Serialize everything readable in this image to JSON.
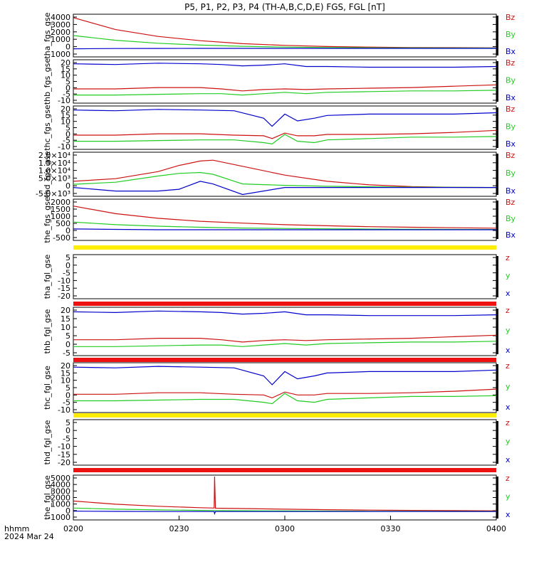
{
  "title": "P5, P1, P2, P3, P4 (TH-A,B,C,D,E) FGS, FGL [nT]",
  "colors": {
    "x": "#0000cc",
    "y": "#22cc22",
    "z": "#cc1111",
    "bar_yellow": "#ffee00",
    "bar_red": "#ee1111"
  },
  "xaxis": {
    "ticks": [
      "0200",
      "0230",
      "0300",
      "0330",
      "0400"
    ],
    "label_line1": "hhmm",
    "label_line2": "2024 Mar 24"
  },
  "chart_data": [
    {
      "type": "line",
      "ylabel": "tha_fgs_gse",
      "yticks": [
        "4000",
        "3000",
        "2000",
        "1000",
        "0",
        "-1000"
      ],
      "ylim": [
        -1000,
        4000
      ],
      "legend": [
        "Bz",
        "By",
        "Bx"
      ],
      "x": [
        0,
        0.1,
        0.2,
        0.3,
        0.4,
        0.5,
        0.6,
        0.7,
        0.8,
        0.9,
        1.0
      ],
      "series": [
        {
          "name": "Bz",
          "values": [
            3600,
            2200,
            1400,
            900,
            550,
            350,
            220,
            150,
            100,
            80,
            60
          ]
        },
        {
          "name": "By",
          "values": [
            1500,
            950,
            600,
            380,
            240,
            150,
            100,
            70,
            50,
            40,
            30
          ]
        },
        {
          "name": "Bx",
          "values": [
            -50,
            -20,
            -10,
            0,
            0,
            0,
            0,
            0,
            0,
            0,
            0
          ]
        }
      ]
    },
    {
      "type": "line",
      "ylabel": "thb_fgs_gse",
      "yticks": [
        "20",
        "15",
        "10",
        "5",
        "0",
        "-5",
        "-10"
      ],
      "ylim": [
        -10,
        22
      ],
      "legend": [
        "Bz",
        "By",
        "Bx"
      ],
      "x": [
        0,
        0.1,
        0.2,
        0.3,
        0.35,
        0.4,
        0.45,
        0.5,
        0.55,
        0.6,
        0.7,
        0.8,
        0.9,
        1.0
      ],
      "series": [
        {
          "name": "Bz",
          "values": [
            0.5,
            0.5,
            1.5,
            1.5,
            0.5,
            -1,
            0,
            0.5,
            0,
            0.5,
            1,
            1.5,
            2.5,
            3.5
          ]
        },
        {
          "name": "By",
          "values": [
            -4,
            -4,
            -3.5,
            -3,
            -3,
            -4,
            -3,
            -2,
            -3,
            -2,
            -1.5,
            -1,
            -1,
            -0.5
          ]
        },
        {
          "name": "Bx",
          "values": [
            19,
            18.5,
            19.5,
            19,
            18.5,
            17.5,
            18,
            19,
            17,
            17,
            16.5,
            16.5,
            16.5,
            17
          ]
        }
      ]
    },
    {
      "type": "line",
      "ylabel": "thc_fgs_gse",
      "yticks": [
        "20",
        "15",
        "10",
        "5",
        "0",
        "-5",
        "-10"
      ],
      "ylim": [
        -10,
        22
      ],
      "legend": [
        "Bz",
        "By",
        "Bx"
      ],
      "x": [
        0,
        0.1,
        0.2,
        0.3,
        0.38,
        0.45,
        0.47,
        0.5,
        0.53,
        0.57,
        0.6,
        0.7,
        0.8,
        0.9,
        1.0
      ],
      "series": [
        {
          "name": "Bz",
          "values": [
            0.5,
            0.5,
            1.5,
            1.5,
            0.5,
            0,
            -2,
            2,
            0,
            0,
            1,
            1,
            1.5,
            2.5,
            4
          ]
        },
        {
          "name": "By",
          "values": [
            -4,
            -4,
            -3.5,
            -3,
            -3,
            -5,
            -6,
            1,
            -4,
            -5,
            -3,
            -2,
            -1,
            -1,
            -0.5
          ]
        },
        {
          "name": "Bx",
          "values": [
            19,
            18.5,
            19.5,
            19,
            18.5,
            13,
            7,
            16,
            11,
            13,
            15,
            16,
            16,
            16,
            17
          ]
        }
      ]
    },
    {
      "type": "line",
      "ylabel": "thd_fgs_gse",
      "yticks": [
        "2.0×10⁴",
        "1.5×10⁴",
        "1.0×10⁴",
        "5.0×10³",
        "0",
        "-5.0×10³"
      ],
      "ylim": [
        -5000,
        20000
      ],
      "legend": [
        "Bz",
        "By",
        "Bx"
      ],
      "x": [
        0,
        0.1,
        0.2,
        0.25,
        0.3,
        0.33,
        0.4,
        0.5,
        0.6,
        0.7,
        0.8,
        0.9,
        1.0
      ],
      "series": [
        {
          "name": "Bz",
          "values": [
            3500,
            5000,
            9000,
            12500,
            15000,
            15500,
            12000,
            7000,
            3500,
            1500,
            500,
            100,
            0
          ]
        },
        {
          "name": "By",
          "values": [
            1800,
            3000,
            6500,
            8000,
            8500,
            7500,
            2000,
            1200,
            700,
            400,
            200,
            80,
            0
          ]
        },
        {
          "name": "Bx",
          "values": [
            0,
            -2000,
            -2000,
            -1000,
            3500,
            2000,
            -4000,
            0,
            0,
            0,
            0,
            0,
            0
          ]
        }
      ]
    },
    {
      "type": "line",
      "ylabel": "the_fgs_gse",
      "yticks": [
        "2000",
        "1500",
        "1000",
        "500",
        "0",
        "-500"
      ],
      "ylim": [
        -700,
        2000
      ],
      "legend": [
        "Bz",
        "By",
        "Bx"
      ],
      "x": [
        0,
        0.1,
        0.2,
        0.3,
        0.4,
        0.5,
        0.6,
        0.7,
        0.8,
        0.9,
        1.0
      ],
      "series": [
        {
          "name": "Bz",
          "values": [
            1550,
            1050,
            750,
            550,
            430,
            330,
            260,
            200,
            160,
            130,
            100
          ]
        },
        {
          "name": "By",
          "values": [
            500,
            330,
            230,
            160,
            110,
            80,
            60,
            40,
            30,
            20,
            15
          ]
        },
        {
          "name": "Bx",
          "values": [
            50,
            20,
            0,
            0,
            0,
            0,
            0,
            0,
            0,
            0,
            0
          ]
        }
      ]
    },
    {
      "type": "line",
      "ylabel": "tha_fgl_gse",
      "yticks": [
        "5",
        "0",
        "-5",
        "-10",
        "-15",
        "-20"
      ],
      "ylim": [
        -22,
        7
      ],
      "legend": [
        "z",
        "y",
        "x"
      ],
      "x": [],
      "series": []
    },
    {
      "type": "line",
      "ylabel": "thb_fgl_gse",
      "yticks": [
        "20",
        "15",
        "10",
        "5",
        "0",
        "-5"
      ],
      "ylim": [
        -10,
        22
      ],
      "legend": [
        "z",
        "y",
        "x"
      ],
      "x": [
        0,
        0.1,
        0.2,
        0.3,
        0.35,
        0.4,
        0.45,
        0.5,
        0.55,
        0.6,
        0.7,
        0.8,
        0.9,
        1.0
      ],
      "series": [
        {
          "name": "z",
          "values": [
            0.5,
            0.5,
            1.5,
            1.5,
            0.5,
            -1,
            0,
            0.5,
            0,
            0.5,
            1,
            1.5,
            2.5,
            3.5
          ]
        },
        {
          "name": "y",
          "values": [
            -4,
            -4,
            -3.5,
            -3,
            -3,
            -4,
            -3,
            -2,
            -3,
            -2,
            -1.5,
            -1,
            -1,
            -0.5
          ]
        },
        {
          "name": "x",
          "values": [
            19,
            18.5,
            19.5,
            19,
            18.5,
            17.5,
            18,
            19,
            17,
            17,
            16.5,
            16.5,
            16.5,
            17
          ]
        }
      ]
    },
    {
      "type": "line",
      "ylabel": "thc_fgl_gse",
      "yticks": [
        "20",
        "15",
        "10",
        "5",
        "0",
        "-5",
        "-10"
      ],
      "ylim": [
        -12,
        22
      ],
      "legend": [
        "z",
        "y",
        "x"
      ],
      "x": [
        0,
        0.1,
        0.2,
        0.3,
        0.38,
        0.45,
        0.47,
        0.5,
        0.53,
        0.57,
        0.6,
        0.7,
        0.8,
        0.9,
        1.0
      ],
      "series": [
        {
          "name": "z",
          "values": [
            0.5,
            0.5,
            1.5,
            1.5,
            0.5,
            0,
            -2,
            2,
            0,
            0,
            1,
            1,
            1.5,
            2.5,
            4
          ]
        },
        {
          "name": "y",
          "values": [
            -4,
            -4,
            -3.5,
            -3,
            -3,
            -5,
            -6,
            1,
            -4,
            -5,
            -3,
            -2,
            -1,
            -1,
            -0.5
          ]
        },
        {
          "name": "x",
          "values": [
            19,
            18.5,
            19.5,
            19,
            18.5,
            13,
            7,
            16,
            11,
            13,
            15,
            16,
            16,
            16,
            17
          ]
        }
      ]
    },
    {
      "type": "line",
      "ylabel": "thd_fgl_gse",
      "yticks": [
        "5",
        "0",
        "-5",
        "-10",
        "-15",
        "-20"
      ],
      "ylim": [
        -22,
        7
      ],
      "legend": [
        "z",
        "y",
        "x"
      ],
      "x": [],
      "series": []
    },
    {
      "type": "line",
      "ylabel": "the_fgl_gse",
      "yticks": [
        "5000",
        "4000",
        "3000",
        "2000",
        "1000",
        "0",
        "-1000"
      ],
      "ylim": [
        -1200,
        5200
      ],
      "legend": [
        "z",
        "y",
        "x"
      ],
      "x": [
        0,
        0.1,
        0.2,
        0.3,
        0.333,
        0.334,
        0.336,
        0.4,
        0.5,
        0.6,
        0.7,
        0.8,
        0.9,
        1.0
      ],
      "series": [
        {
          "name": "z",
          "values": [
            1500,
            1050,
            750,
            550,
            500,
            5000,
            480,
            430,
            330,
            260,
            200,
            160,
            130,
            100
          ]
        },
        {
          "name": "y",
          "values": [
            500,
            330,
            230,
            160,
            140,
            140,
            140,
            110,
            80,
            60,
            40,
            30,
            20,
            15
          ]
        },
        {
          "name": "x",
          "values": [
            50,
            20,
            0,
            0,
            0,
            -300,
            0,
            0,
            0,
            0,
            0,
            0,
            0,
            0
          ]
        }
      ]
    }
  ]
}
